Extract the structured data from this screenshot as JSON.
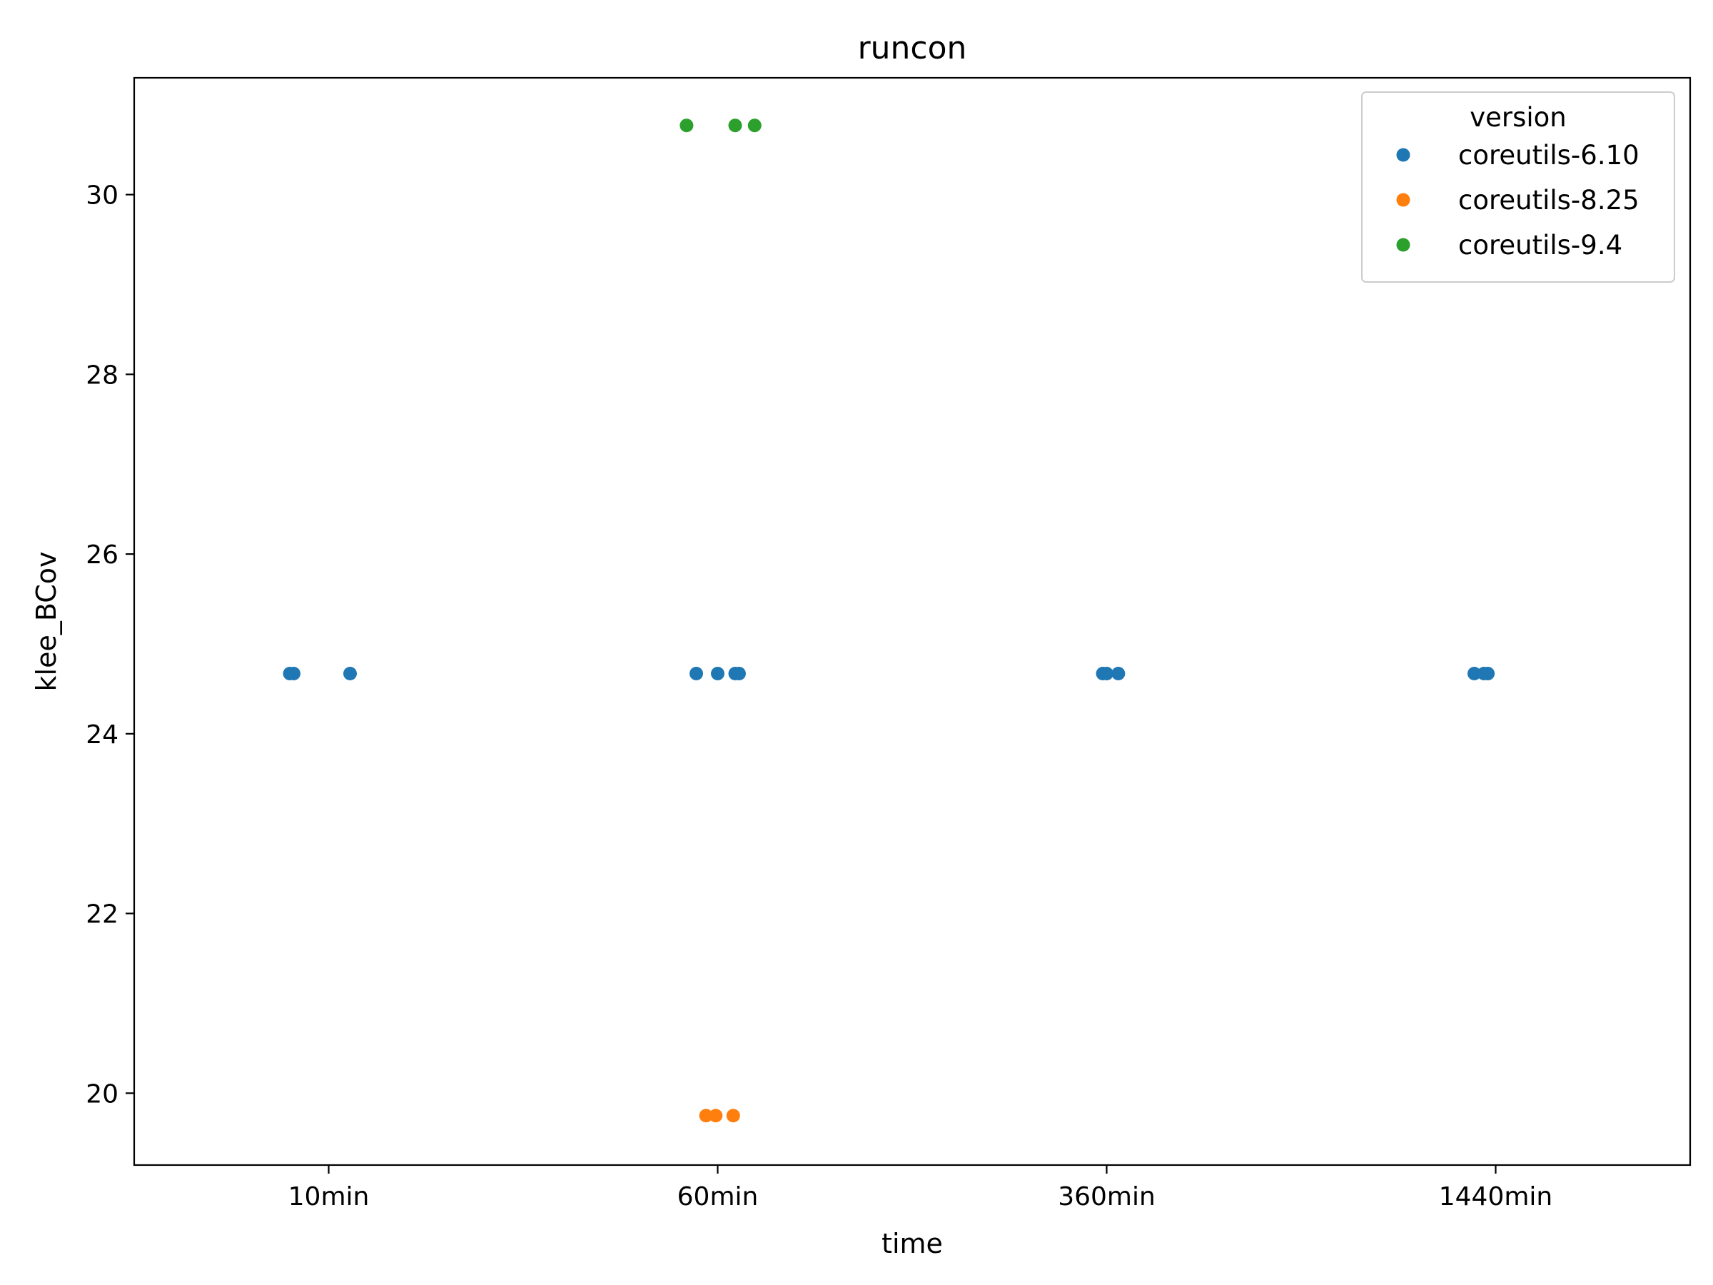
{
  "chart_data": {
    "type": "scatter",
    "title": "runcon",
    "xlabel": "time",
    "ylabel": "klee_BCov",
    "categories": [
      "10min",
      "60min",
      "360min",
      "1440min"
    ],
    "ylim": [
      19.2,
      31.3
    ],
    "yticks": [
      "20",
      "22",
      "24",
      "26",
      "28",
      "30"
    ],
    "grid": false,
    "legend": {
      "title": "version",
      "placement": "top-right",
      "entries": [
        "coreutils-6.10",
        "coreutils-8.25",
        "coreutils-9.4"
      ]
    },
    "series": [
      {
        "name": "coreutils-6.10",
        "color": "#1f77b4",
        "points": [
          {
            "category": "10min",
            "jitter": -0.1,
            "y": 24.67
          },
          {
            "category": "10min",
            "jitter": -0.09,
            "y": 24.67
          },
          {
            "category": "10min",
            "jitter": 0.055,
            "y": 24.67
          },
          {
            "category": "60min",
            "jitter": -0.055,
            "y": 24.67
          },
          {
            "category": "60min",
            "jitter": 0.0,
            "y": 24.67
          },
          {
            "category": "60min",
            "jitter": 0.045,
            "y": 24.67
          },
          {
            "category": "60min",
            "jitter": 0.055,
            "y": 24.67
          },
          {
            "category": "360min",
            "jitter": -0.01,
            "y": 24.67
          },
          {
            "category": "360min",
            "jitter": 0.0,
            "y": 24.67
          },
          {
            "category": "360min",
            "jitter": 0.03,
            "y": 24.67
          },
          {
            "category": "1440min",
            "jitter": -0.055,
            "y": 24.67
          },
          {
            "category": "1440min",
            "jitter": -0.03,
            "y": 24.67
          },
          {
            "category": "1440min",
            "jitter": -0.02,
            "y": 24.67
          }
        ]
      },
      {
        "name": "coreutils-8.25",
        "color": "#ff7f0e",
        "points": [
          {
            "category": "60min",
            "jitter": -0.03,
            "y": 19.75
          },
          {
            "category": "60min",
            "jitter": -0.005,
            "y": 19.75
          },
          {
            "category": "60min",
            "jitter": 0.04,
            "y": 19.75
          }
        ]
      },
      {
        "name": "coreutils-9.4",
        "color": "#2ca02c",
        "points": [
          {
            "category": "60min",
            "jitter": -0.08,
            "y": 30.77
          },
          {
            "category": "60min",
            "jitter": 0.045,
            "y": 30.77
          },
          {
            "category": "60min",
            "jitter": 0.095,
            "y": 30.77
          }
        ]
      }
    ]
  }
}
